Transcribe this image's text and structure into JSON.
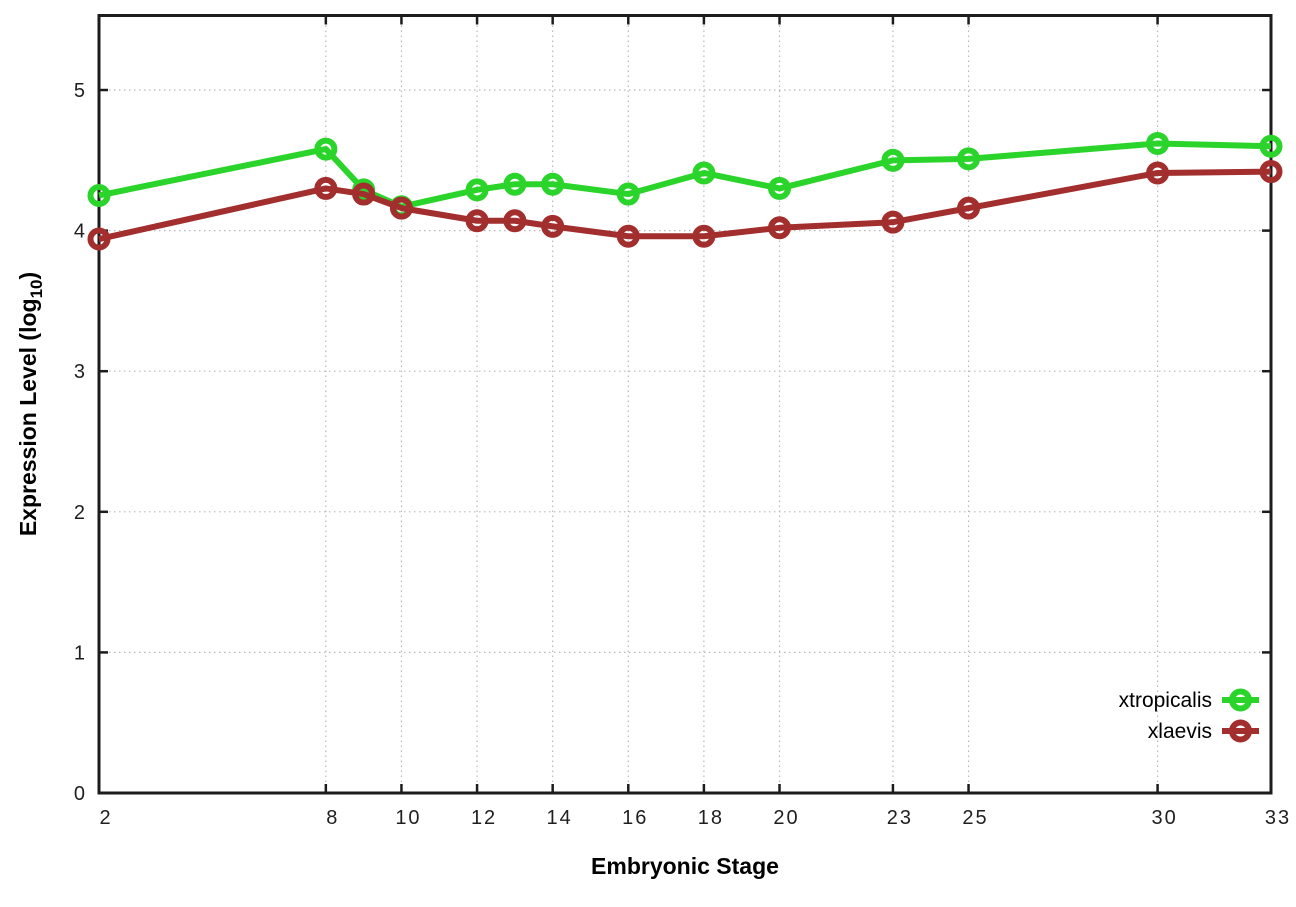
{
  "chart_data": {
    "type": "line",
    "title": "",
    "xlabel": "Embryonic Stage",
    "ylabel": "Expression Level (log10)",
    "ylabel_parts": {
      "main": "Expression Level (log",
      "sub": "10",
      "suffix": ")"
    },
    "x": [
      2,
      8,
      9,
      10,
      12,
      13,
      14,
      16,
      18,
      20,
      23,
      25,
      30,
      33
    ],
    "series": [
      {
        "name": "xtropicalis",
        "color": "#2bd42b",
        "marker": "open-circle",
        "values": [
          4.25,
          4.58,
          4.29,
          4.17,
          4.29,
          4.33,
          4.33,
          4.26,
          4.41,
          4.3,
          4.5,
          4.51,
          4.62,
          4.6
        ]
      },
      {
        "name": "xlaevis",
        "color": "#a22e2e",
        "marker": "open-circle",
        "values": [
          3.94,
          4.3,
          4.26,
          4.16,
          4.07,
          4.07,
          4.03,
          3.96,
          3.96,
          4.02,
          4.06,
          4.16,
          4.41,
          4.42
        ]
      }
    ],
    "x_ticks": [
      2,
      8,
      10,
      12,
      14,
      16,
      18,
      20,
      23,
      25,
      30,
      33
    ],
    "y_ticks": [
      0,
      1,
      2,
      3,
      4,
      5
    ],
    "xlim": [
      2,
      33
    ],
    "ylim": [
      0,
      5.53
    ],
    "grid": true,
    "legend": {
      "position": "inside-bottom-right",
      "entries": [
        "xtropicalis",
        "xlaevis"
      ]
    },
    "colors": {
      "background": "#ffffff",
      "axis": "#1c1c1c",
      "grid": "#b8b8b8",
      "tick_text": "#1f1f1f",
      "title_text": "#000000"
    }
  }
}
